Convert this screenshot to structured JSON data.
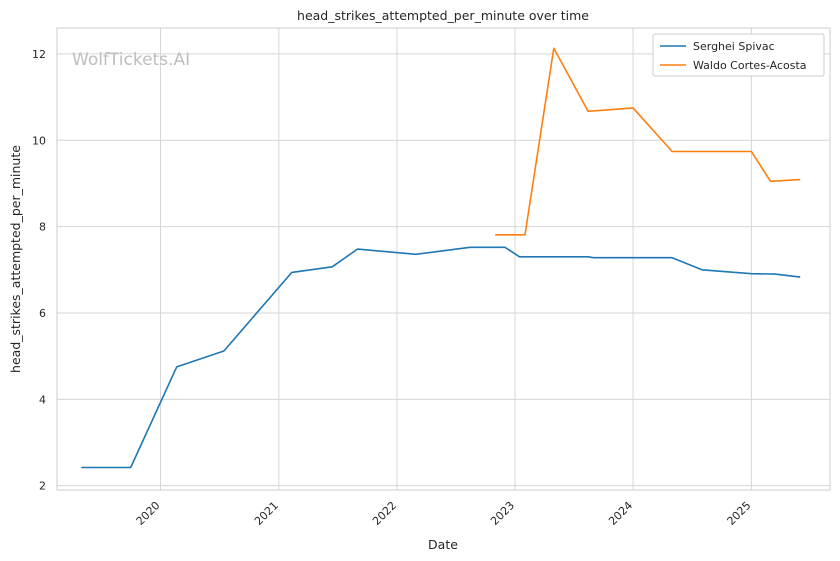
{
  "chart_data": {
    "type": "line",
    "title": "head_strikes_attempted_per_minute over time",
    "xlabel": "Date",
    "ylabel": "head_strikes_attempted_per_minute",
    "watermark": "WolfTickets.AI",
    "xlim": [
      "2019-02-15",
      "2025-09-01"
    ],
    "ylim": [
      1.9,
      12.6
    ],
    "x_ticks": [
      "2020-01-01",
      "2021-01-01",
      "2022-01-01",
      "2023-01-01",
      "2024-01-01",
      "2025-01-01"
    ],
    "x_tick_labels": [
      "2020",
      "2021",
      "2022",
      "2023",
      "2024",
      "2025"
    ],
    "y_ticks": [
      2,
      4,
      6,
      8,
      10,
      12
    ],
    "grid": true,
    "legend_position": "top-right",
    "series": [
      {
        "name": "Serghei Spivac",
        "color": "#1f77b4",
        "points": [
          [
            "2019-05-01",
            2.42
          ],
          [
            "2019-10-01",
            2.42
          ],
          [
            "2020-02-20",
            4.75
          ],
          [
            "2020-07-15",
            5.12
          ],
          [
            "2021-02-10",
            6.94
          ],
          [
            "2021-06-15",
            7.07
          ],
          [
            "2021-09-01",
            7.48
          ],
          [
            "2022-03-01",
            7.36
          ],
          [
            "2022-08-15",
            7.52
          ],
          [
            "2022-12-01",
            7.52
          ],
          [
            "2023-01-15",
            7.3
          ],
          [
            "2023-08-15",
            7.3
          ],
          [
            "2023-09-01",
            7.28
          ],
          [
            "2024-05-01",
            7.28
          ],
          [
            "2024-08-01",
            7.0
          ],
          [
            "2025-01-01",
            6.91
          ],
          [
            "2025-03-15",
            6.9
          ],
          [
            "2025-06-01",
            6.83
          ]
        ]
      },
      {
        "name": "Waldo Cortes-Acosta",
        "color": "#ff7f0e",
        "points": [
          [
            "2022-11-01",
            7.81
          ],
          [
            "2023-02-01",
            7.81
          ],
          [
            "2023-05-01",
            12.13
          ],
          [
            "2023-08-15",
            10.67
          ],
          [
            "2024-01-01",
            10.75
          ],
          [
            "2024-05-01",
            9.74
          ],
          [
            "2025-01-01",
            9.74
          ],
          [
            "2025-03-01",
            9.05
          ],
          [
            "2025-06-01",
            9.09
          ]
        ]
      }
    ]
  }
}
